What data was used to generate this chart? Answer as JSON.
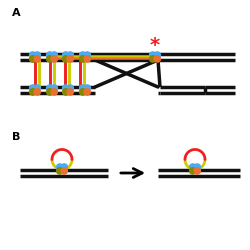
{
  "bg_color": "#ffffff",
  "label_A": "A",
  "label_B": "B",
  "dna_color": "#111111",
  "blue_color": "#4daaee",
  "orange_color": "#e87030",
  "olive_color": "#888800",
  "red_color": "#ee2020",
  "yellow_color": "#cccc00",
  "lw_dna": 2.5,
  "lw_color": 1.8,
  "lw_loop": 2.0
}
